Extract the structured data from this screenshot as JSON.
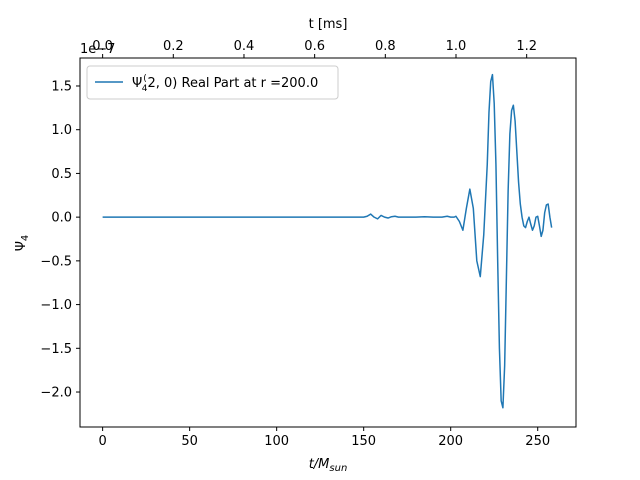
{
  "chart_data": {
    "type": "line",
    "xlabel": "t/M",
    "xlabel_sub": "sun",
    "ylabel": "Ψ",
    "ylabel_sub": "4",
    "top_xlabel": "t [ms]",
    "offset_text": "1e−7",
    "xlim": [
      -13,
      272
    ],
    "ylim": [
      -2.4,
      1.82
    ],
    "xticks": [
      0,
      50,
      100,
      150,
      200,
      250
    ],
    "xtick_labels": [
      "0",
      "50",
      "100",
      "150",
      "200",
      "250"
    ],
    "yticks": [
      -2.0,
      -1.5,
      -1.0,
      -0.5,
      0.0,
      0.5,
      1.0,
      1.5
    ],
    "ytick_labels": [
      "−2.0",
      "−1.5",
      "−1.0",
      "−0.5",
      "0.0",
      "0.5",
      "1.0",
      "1.5"
    ],
    "top_ticks_ms": [
      0.0,
      0.2,
      0.4,
      0.6,
      0.8,
      1.0,
      1.2
    ],
    "top_tick_labels": [
      "0.0",
      "0.2",
      "0.4",
      "0.6",
      "0.8",
      "1.0",
      "1.2"
    ],
    "ms_per_unit": 0.004925,
    "legend": {
      "position": "upper left",
      "label_prefix": "Ψ",
      "label_sub": "4",
      "label_sup": "(",
      "label_rest": "2, 0) Real Part at r =200.0"
    },
    "line_color": "#1f77b4",
    "grid": false,
    "series": [
      {
        "name": "Ψ4(2, 0) Real Part at r =200.0",
        "x": [
          0,
          50,
          100,
          140,
          148,
          150,
          152,
          154,
          156,
          158,
          160,
          162,
          164,
          166,
          168,
          170,
          175,
          180,
          185,
          190,
          195,
          198,
          200,
          202,
          203,
          205,
          207,
          209,
          211,
          213,
          215,
          217,
          219,
          221,
          222,
          223,
          224,
          225,
          226,
          227,
          228,
          229,
          230,
          231,
          232,
          233,
          234,
          235,
          236,
          237,
          238,
          239,
          240,
          241,
          242,
          243,
          244,
          245,
          246,
          247,
          248,
          249,
          250,
          251,
          252,
          253,
          254,
          255,
          256,
          257,
          258
        ],
        "y": [
          0.0,
          0.0,
          0.0,
          0.0,
          0.0,
          0.0,
          0.01,
          0.035,
          0.0,
          -0.02,
          0.02,
          0.0,
          -0.01,
          0.005,
          0.01,
          0.0,
          0.0,
          0.0,
          0.005,
          0.0,
          0.0,
          0.01,
          0.0,
          0.0,
          0.01,
          -0.05,
          -0.15,
          0.1,
          0.32,
          0.1,
          -0.5,
          -0.68,
          -0.2,
          0.6,
          1.2,
          1.55,
          1.63,
          1.3,
          0.6,
          -0.5,
          -1.5,
          -2.1,
          -2.18,
          -1.7,
          -0.7,
          0.3,
          0.95,
          1.22,
          1.28,
          1.1,
          0.75,
          0.4,
          0.15,
          0.0,
          -0.1,
          -0.12,
          -0.05,
          0.0,
          -0.08,
          -0.15,
          -0.1,
          0.0,
          0.01,
          -0.1,
          -0.22,
          -0.15,
          0.05,
          0.14,
          0.15,
          0.0,
          -0.12
        ]
      }
    ]
  }
}
